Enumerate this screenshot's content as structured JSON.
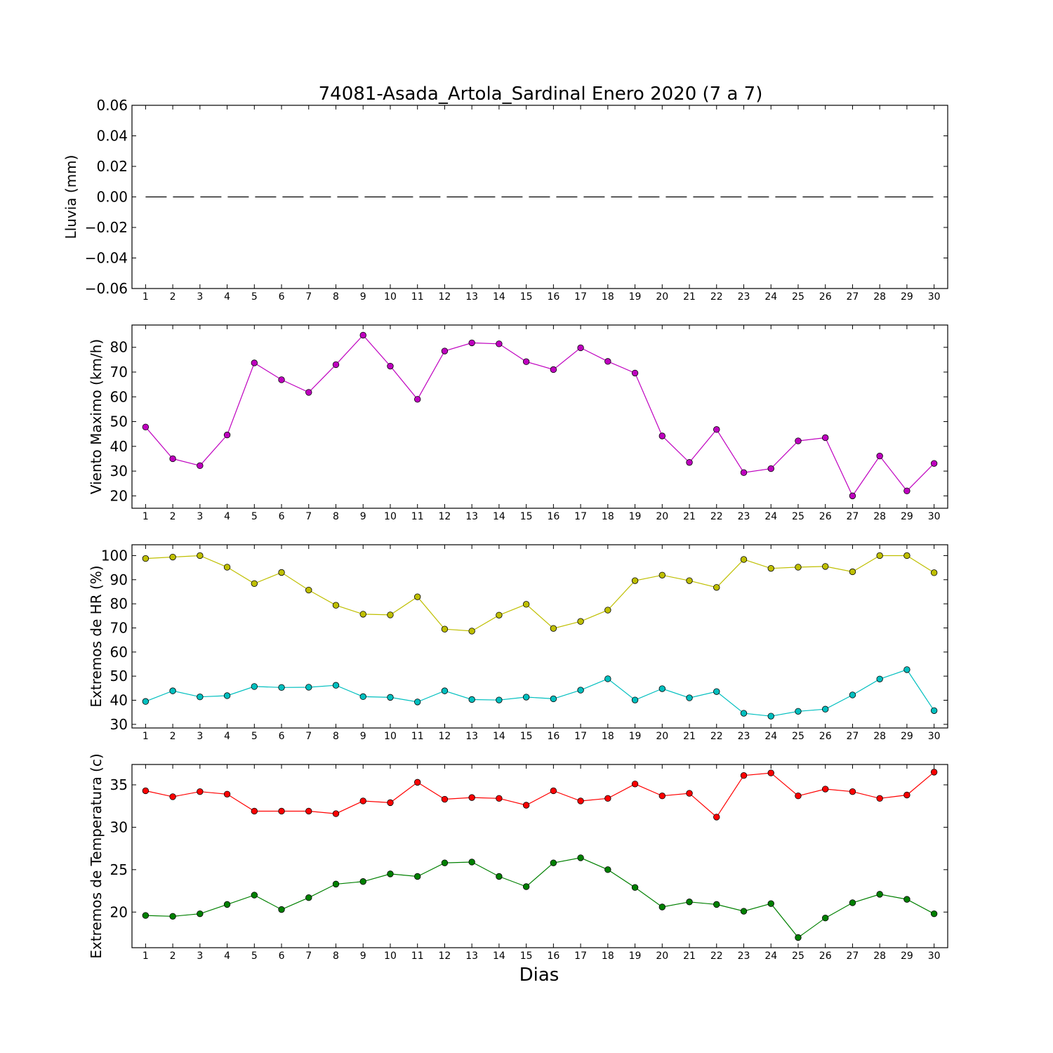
{
  "title": "74081-Asada_Artola_Sardinal Enero 2020  (7 a 7)",
  "xlabel": "Dias",
  "chart_data": [
    {
      "type": "line",
      "ylabel": "Lluvia (mm)",
      "x": [
        1,
        2,
        3,
        4,
        5,
        6,
        7,
        8,
        9,
        10,
        11,
        12,
        13,
        14,
        15,
        16,
        17,
        18,
        19,
        20,
        21,
        22,
        23,
        24,
        25,
        26,
        27,
        28,
        29,
        30
      ],
      "ylim": [
        -0.06,
        0.06
      ],
      "yticks": [
        0.06,
        0.04,
        0.02,
        0.0,
        -0.02,
        -0.04,
        -0.06
      ],
      "ytick_labels": [
        "0.06",
        "0.04",
        "0.02",
        "0.00",
        "−0.02",
        "−0.04",
        "−0.06"
      ],
      "series": [
        {
          "color": "#000000",
          "style": "dashed",
          "marker": "none",
          "values": [
            0,
            0,
            0,
            0,
            0,
            0,
            0,
            0,
            0,
            0,
            0,
            0,
            0,
            0,
            0,
            0,
            0,
            0,
            0,
            0,
            0,
            0,
            0,
            0,
            0,
            0,
            0,
            0,
            0,
            0
          ]
        }
      ]
    },
    {
      "type": "line",
      "ylabel": "Viento Maximo (km/h)",
      "x": [
        1,
        2,
        3,
        4,
        5,
        6,
        7,
        8,
        9,
        10,
        11,
        12,
        13,
        14,
        15,
        16,
        17,
        18,
        19,
        20,
        21,
        22,
        23,
        24,
        25,
        26,
        27,
        28,
        29,
        30
      ],
      "ylim": [
        15,
        89
      ],
      "yticks": [
        20,
        30,
        40,
        50,
        60,
        70,
        80
      ],
      "ytick_labels": [
        "20",
        "30",
        "40",
        "50",
        "60",
        "70",
        "80"
      ],
      "series": [
        {
          "color": "#bf00bf",
          "style": "solid",
          "marker": "circle",
          "values": [
            47.8,
            35,
            32.2,
            44.6,
            73.7,
            66.9,
            61.8,
            73,
            84.9,
            72.4,
            59,
            78.5,
            81.8,
            81.4,
            74.2,
            71,
            79.8,
            74.3,
            69.6,
            44.2,
            33.5,
            46.8,
            29.4,
            31,
            42.2,
            43.5,
            20,
            36.1,
            22,
            33.1
          ]
        }
      ]
    },
    {
      "type": "line",
      "ylabel": "Extremos de HR (%)",
      "x": [
        1,
        2,
        3,
        4,
        5,
        6,
        7,
        8,
        9,
        10,
        11,
        12,
        13,
        14,
        15,
        16,
        17,
        18,
        19,
        20,
        21,
        22,
        23,
        24,
        25,
        26,
        27,
        28,
        29,
        30
      ],
      "ylim": [
        28.5,
        104.5
      ],
      "yticks": [
        30,
        40,
        50,
        60,
        70,
        80,
        90,
        100
      ],
      "ytick_labels": [
        "30",
        "40",
        "50",
        "60",
        "70",
        "80",
        "90",
        "100"
      ],
      "series": [
        {
          "color": "#bfbf00",
          "style": "solid",
          "marker": "circle",
          "values": [
            98.8,
            99.4,
            100,
            95.2,
            88.4,
            93,
            85.7,
            79.4,
            75.7,
            75.4,
            82.9,
            69.5,
            68.7,
            75.3,
            79.8,
            69.8,
            72.7,
            77.4,
            89.6,
            91.9,
            89.6,
            86.8,
            98.4,
            94.7,
            95.2,
            95.5,
            93.3,
            100,
            100,
            92.9
          ]
        },
        {
          "color": "#00bfbf",
          "style": "solid",
          "marker": "circle",
          "values": [
            39.5,
            43.9,
            41.4,
            41.9,
            45.7,
            45.3,
            45.4,
            46.2,
            41.5,
            41.2,
            39.3,
            43.9,
            40.3,
            40.1,
            41.3,
            40.6,
            44.2,
            48.9,
            40.1,
            44.8,
            41,
            43.6,
            34.6,
            33.4,
            35.4,
            36.3,
            42.2,
            48.8,
            52.7,
            35.7
          ]
        }
      ]
    },
    {
      "type": "line",
      "ylabel": "Extremos de Temperatura (c)",
      "x": [
        1,
        2,
        3,
        4,
        5,
        6,
        7,
        8,
        9,
        10,
        11,
        12,
        13,
        14,
        15,
        16,
        17,
        18,
        19,
        20,
        21,
        22,
        23,
        24,
        25,
        26,
        27,
        28,
        29,
        30
      ],
      "ylim": [
        15.8,
        37.4
      ],
      "yticks": [
        20,
        25,
        30,
        35
      ],
      "ytick_labels": [
        "20",
        "25",
        "30",
        "35"
      ],
      "series": [
        {
          "color": "#ff0000",
          "style": "solid",
          "marker": "circle",
          "values": [
            34.3,
            33.6,
            34.2,
            33.9,
            31.9,
            31.9,
            31.9,
            31.6,
            33.1,
            32.9,
            35.3,
            33.3,
            33.5,
            33.4,
            32.6,
            34.3,
            33.1,
            33.4,
            35.1,
            33.7,
            34,
            31.2,
            36.1,
            36.4,
            33.7,
            34.5,
            34.2,
            33.4,
            33.8,
            36.5
          ]
        },
        {
          "color": "#008000",
          "style": "solid",
          "marker": "circle",
          "values": [
            19.6,
            19.5,
            19.8,
            20.9,
            22,
            20.3,
            21.7,
            23.3,
            23.6,
            24.5,
            24.2,
            25.8,
            25.9,
            24.2,
            23,
            25.8,
            26.4,
            25,
            22.9,
            20.6,
            21.2,
            20.9,
            20.1,
            21,
            17,
            19.3,
            21.1,
            22.1,
            21.5,
            19.8
          ]
        }
      ]
    }
  ]
}
